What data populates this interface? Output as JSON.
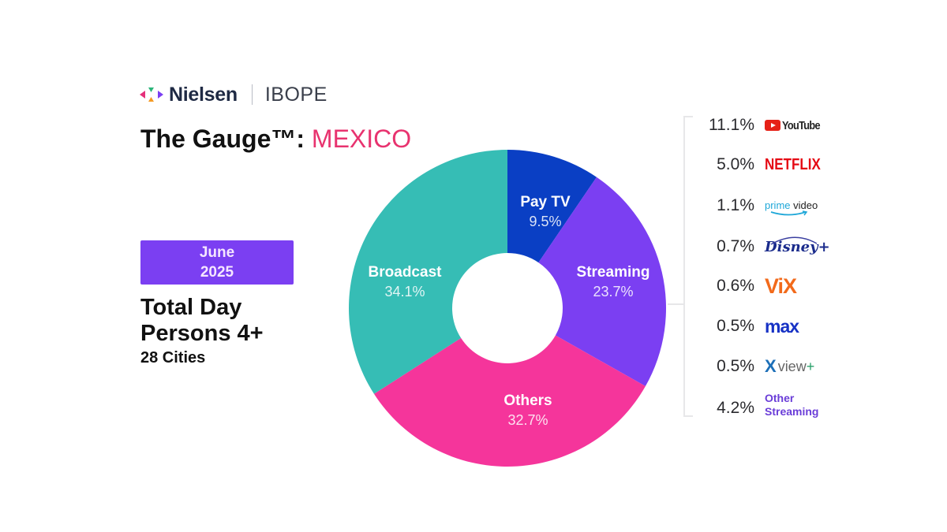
{
  "header": {
    "brand": "Nielsen",
    "partner": "IBOPE",
    "title_prefix": "The Gauge™:",
    "title_country": "MEXICO",
    "title_country_color": "#e8336f"
  },
  "period": {
    "month": "June",
    "year": "2025",
    "bg_color": "#7b3ff2"
  },
  "scope": {
    "line1": "Total Day",
    "line2": "Persons 4+",
    "line3": "28 Cities"
  },
  "chart_data": [
    {
      "type": "pie",
      "subtype": "donut",
      "title": "The Gauge™: MEXICO",
      "subtitle": "June 2025 — Total Day, Persons 4+, 28 Cities",
      "categories": [
        "Pay TV",
        "Streaming",
        "Others",
        "Broadcast"
      ],
      "values": [
        9.5,
        23.7,
        32.7,
        34.1
      ],
      "unit": "%",
      "colors": [
        "#0a3fc4",
        "#7b3ff2",
        "#f5359b",
        "#36bdb5"
      ],
      "start_angle": "12 o'clock, clockwise",
      "legend": "none (inline slice labels)"
    },
    {
      "type": "table",
      "title": "Streaming breakdown",
      "parent_category": "Streaming",
      "categories": [
        "YouTube",
        "Netflix",
        "Prime Video",
        "Disney+",
        "ViX",
        "Max",
        "Xview+",
        "Other Streaming"
      ],
      "values": [
        11.1,
        5.0,
        1.1,
        0.7,
        0.6,
        0.5,
        0.5,
        4.2
      ],
      "unit": "%"
    }
  ],
  "donut": {
    "slices": [
      {
        "name": "Pay TV",
        "pct": "9.5%",
        "value": 9.5,
        "color": "#0a3fc4"
      },
      {
        "name": "Streaming",
        "pct": "23.7%",
        "value": 23.7,
        "color": "#7b3ff2"
      },
      {
        "name": "Others",
        "pct": "32.7%",
        "value": 32.7,
        "color": "#f5359b"
      },
      {
        "name": "Broadcast",
        "pct": "34.1%",
        "value": 34.1,
        "color": "#36bdb5"
      }
    ]
  },
  "streaming_services": [
    {
      "pct": "11.1%",
      "logo": "YouTube"
    },
    {
      "pct": "5.0%",
      "logo": "NETFLIX"
    },
    {
      "pct": "1.1%",
      "logo_a": "prime",
      "logo_b": "video"
    },
    {
      "pct": "0.7%",
      "logo": "Disney+"
    },
    {
      "pct": "0.6%",
      "logo": "ViX"
    },
    {
      "pct": "0.5%",
      "logo": "max"
    },
    {
      "pct": "0.5%",
      "logo_a": "X",
      "logo_b": "view",
      "logo_c": "+"
    },
    {
      "pct": "4.2%",
      "logo_a": "Other",
      "logo_b": "Streaming"
    }
  ]
}
